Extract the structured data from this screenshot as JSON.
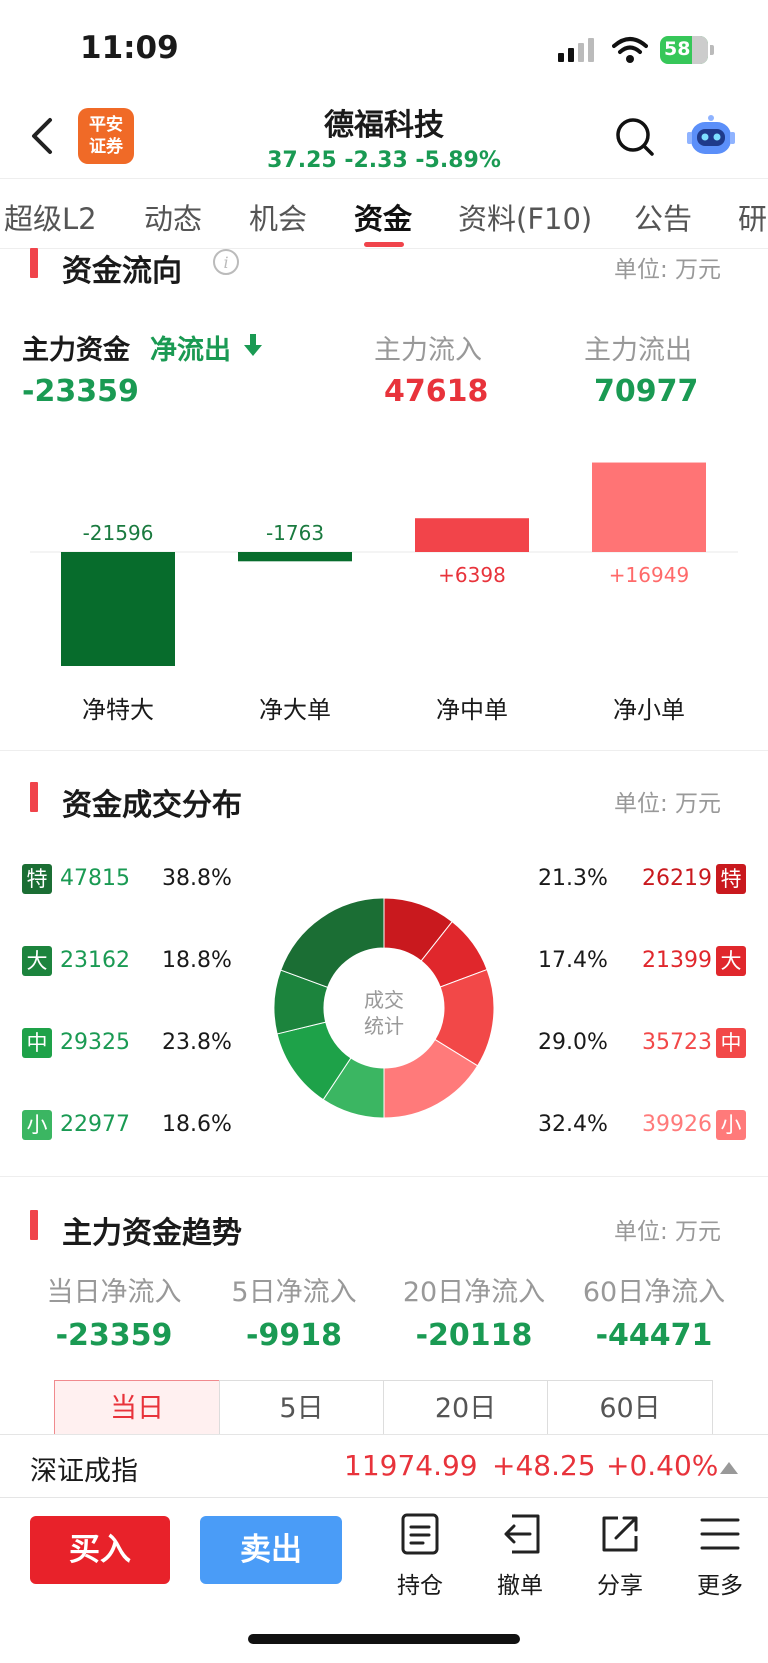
{
  "status_bar": {
    "time": "11:09",
    "battery": "58"
  },
  "header": {
    "logo_text": "平安证券",
    "stock_name": "德福科技",
    "price_line": "37.25 -2.33 -5.89%"
  },
  "tabs": [
    "超级L2",
    "动态",
    "机会",
    "资金",
    "资料(F10)",
    "公告",
    "研"
  ],
  "active_tab": "资金",
  "fund_flow": {
    "title": "资金流向",
    "unit": "单位: 万元",
    "main_label": "主力资金",
    "net_label": "净流出",
    "main_value": "-23359",
    "inflow_label": "主力流入",
    "inflow_value": "47618",
    "outflow_label": "主力流出",
    "outflow_value": "70977"
  },
  "chart_data": {
    "type": "bar",
    "categories": [
      "净特大",
      "净大单",
      "净中单",
      "净小单"
    ],
    "values": [
      -21596,
      -1763,
      6398,
      16949
    ],
    "value_labels": [
      "-21596",
      "-1763",
      "+6398",
      "+16949"
    ],
    "colors": [
      "#076c2c",
      "#076c2c",
      "#f2444a",
      "#ff7475"
    ]
  },
  "distribution": {
    "title": "资金成交分布",
    "unit": "单位: 万元",
    "center_label_1": "成交",
    "center_label_2": "统计",
    "outflow": [
      {
        "tag": "特",
        "value": "47815",
        "pct": "38.8%",
        "color": "#1b6e34"
      },
      {
        "tag": "大",
        "value": "23162",
        "pct": "18.8%",
        "color": "#1c843d"
      },
      {
        "tag": "中",
        "value": "29325",
        "pct": "23.8%",
        "color": "#1ea249"
      },
      {
        "tag": "小",
        "value": "22977",
        "pct": "18.6%",
        "color": "#3bb662"
      }
    ],
    "inflow": [
      {
        "tag": "特",
        "value": "26219",
        "pct": "21.3%",
        "color": "#c9191e"
      },
      {
        "tag": "大",
        "value": "21399",
        "pct": "17.4%",
        "color": "#e0272c"
      },
      {
        "tag": "中",
        "value": "35723",
        "pct": "29.0%",
        "color": "#f24848"
      },
      {
        "tag": "小",
        "value": "39926",
        "pct": "32.4%",
        "color": "#ff7a7a"
      }
    ]
  },
  "trend": {
    "title": "主力资金趋势",
    "unit": "单位: 万元",
    "items": [
      {
        "label": "当日净流入",
        "value": "-23359"
      },
      {
        "label": "5日净流入",
        "value": "-9918"
      },
      {
        "label": "20日净流入",
        "value": "-20118"
      },
      {
        "label": "60日净流入",
        "value": "-44471"
      }
    ],
    "segments": [
      "当日",
      "5日",
      "20日",
      "60日"
    ]
  },
  "index_bar": {
    "name": "深证成指",
    "value": "11974.99",
    "change": "+48.25",
    "pct": "+0.40%"
  },
  "actions": {
    "buy": "买入",
    "sell": "卖出",
    "items": [
      "持仓",
      "撤单",
      "分享",
      "更多"
    ]
  }
}
